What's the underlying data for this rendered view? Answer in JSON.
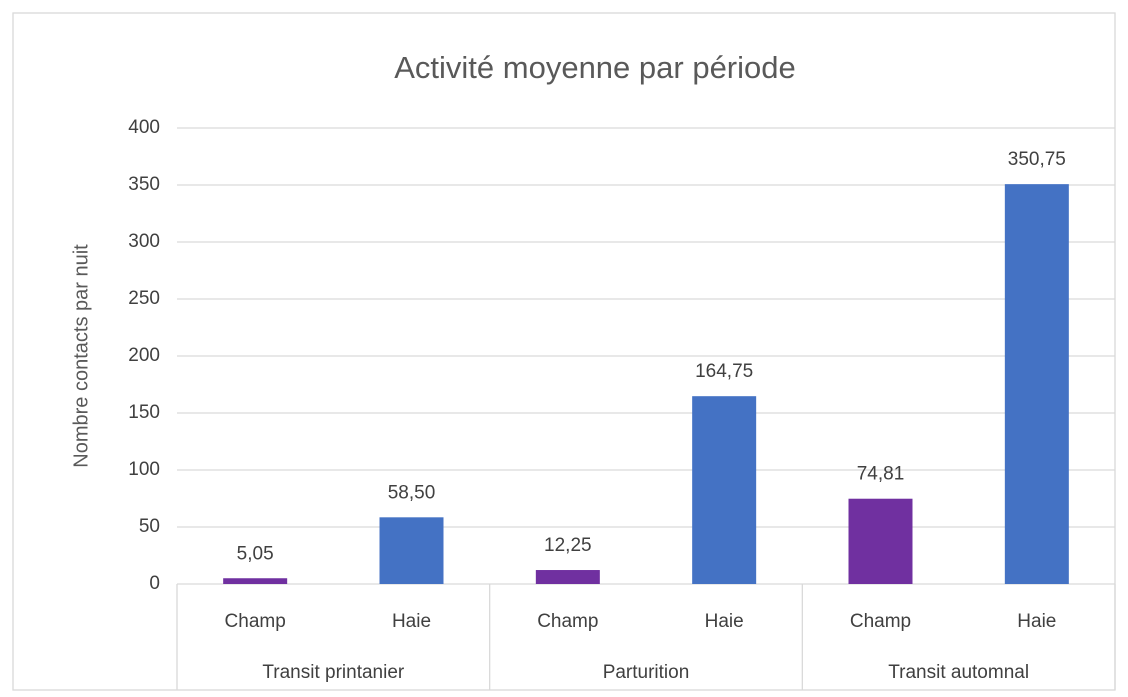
{
  "chart_data": {
    "type": "bar",
    "title": "Activité moyenne par période",
    "y_label": "Nombre contacts par nuit",
    "categories": [
      "Champ",
      "Haie",
      "Champ",
      "Haie",
      "Champ",
      "Haie"
    ],
    "groups": [
      "Transit printanier",
      "Parturition",
      "Transit automnal"
    ],
    "values": [
      5.05,
      58.5,
      12.25,
      164.75,
      74.81,
      350.75
    ],
    "value_labels": [
      "5,05",
      "58,50",
      "12,25",
      "164,75",
      "74,81",
      "350,75"
    ],
    "colors": [
      "#7030a0",
      "#4472c4",
      "#7030a0",
      "#4472c4",
      "#7030a0",
      "#4472c4"
    ],
    "ylim": [
      0,
      400
    ],
    "yticks": [
      0,
      50,
      100,
      150,
      200,
      250,
      300,
      350,
      400
    ],
    "grid": true
  }
}
